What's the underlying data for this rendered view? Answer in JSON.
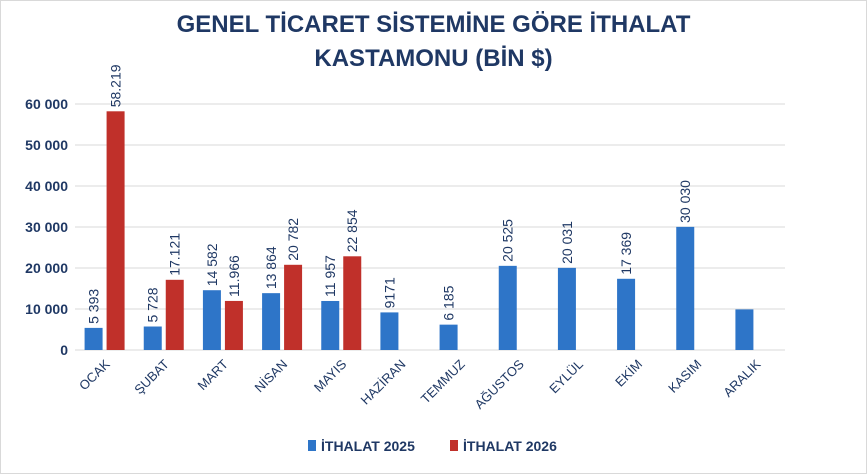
{
  "chart_data": {
    "type": "bar",
    "title": [
      "GENEL TİCARET SİSTEMİNE GÖRE İTHALAT",
      "KASTAMONU (BİN $)"
    ],
    "categories": [
      "OCAK",
      "ŞUBAT",
      "MART",
      "NİSAN",
      "MAYIS",
      "HAZİRAN",
      "TEMMUZ",
      "AĞUSTOS",
      "EYLÜL",
      "EKİM",
      "KASIM",
      "ARALIK"
    ],
    "series": [
      {
        "name": "İTHALAT 2025",
        "color": "#2e75c8",
        "values": [
          5393,
          5728,
          14582,
          13864,
          11957,
          9171,
          6185,
          20525,
          20031,
          17369,
          30030,
          9900
        ],
        "labels": [
          "5 393",
          "5 728",
          "14 582",
          "13 864",
          "11 957",
          "9171",
          "6 185",
          "20 525",
          "20 031",
          "17 369",
          "30 030",
          ""
        ]
      },
      {
        "name": "İTHALAT 2026",
        "color": "#c0302a",
        "values": [
          58219,
          17121,
          11966,
          20782,
          22854,
          null,
          null,
          null,
          null,
          null,
          null,
          null
        ],
        "labels": [
          "58.219",
          "17.121",
          "11.966",
          "20 782",
          "22 854",
          "",
          "",
          "",
          "",
          "",
          "",
          ""
        ]
      }
    ],
    "yticks": [
      "0",
      "10 000",
      "20 000",
      "30 000",
      "40 000",
      "50 000",
      "60 000"
    ],
    "ylim": [
      0,
      60000
    ],
    "grid": true,
    "legend": "bottom"
  }
}
